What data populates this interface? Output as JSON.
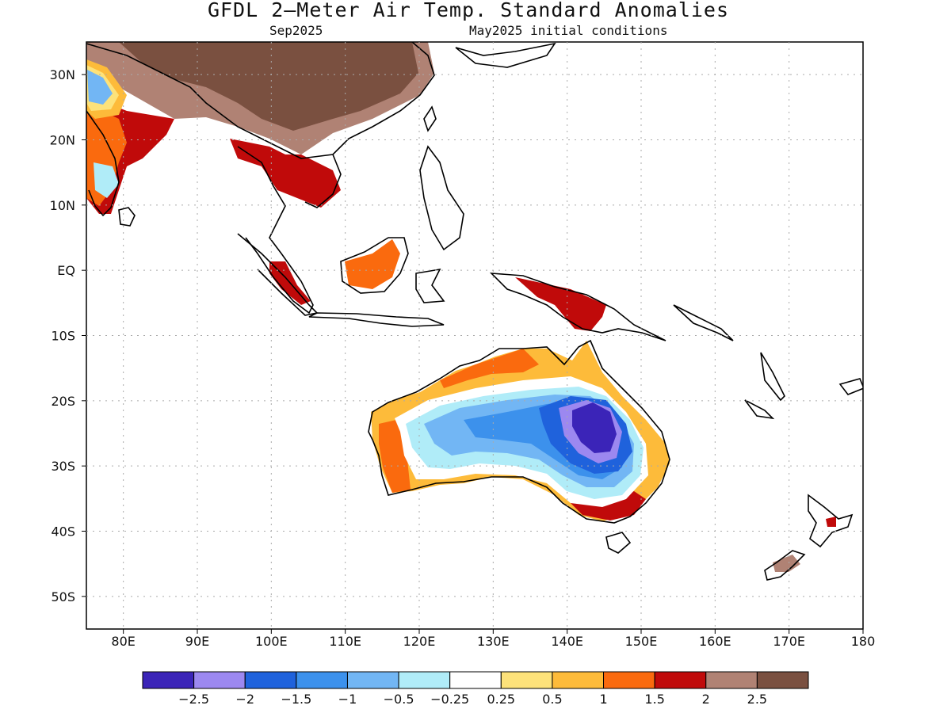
{
  "title": "GFDL 2–Meter Air Temp. Standard Anomalies",
  "subtitle_left": "Sep2025",
  "subtitle_right": "May2025 initial conditions",
  "map": {
    "lon_range": [
      75,
      180
    ],
    "lat_range": [
      -55,
      35
    ],
    "x_ticks": [
      {
        "lon": 80,
        "label": "80E"
      },
      {
        "lon": 90,
        "label": "90E"
      },
      {
        "lon": 100,
        "label": "100E"
      },
      {
        "lon": 110,
        "label": "110E"
      },
      {
        "lon": 120,
        "label": "120E"
      },
      {
        "lon": 130,
        "label": "130E"
      },
      {
        "lon": 140,
        "label": "140E"
      },
      {
        "lon": 150,
        "label": "150E"
      },
      {
        "lon": 160,
        "label": "160E"
      },
      {
        "lon": 170,
        "label": "170E"
      },
      {
        "lon": 180,
        "label": "180"
      }
    ],
    "y_ticks": [
      {
        "lat": 30,
        "label": "30N"
      },
      {
        "lat": 20,
        "label": "20N"
      },
      {
        "lat": 10,
        "label": "10N"
      },
      {
        "lat": 0,
        "label": "EQ"
      },
      {
        "lat": -10,
        "label": "10S"
      },
      {
        "lat": -20,
        "label": "20S"
      },
      {
        "lat": -30,
        "label": "30S"
      },
      {
        "lat": -40,
        "label": "40S"
      },
      {
        "lat": -50,
        "label": "50S"
      }
    ],
    "grid": true
  },
  "colorbar": {
    "colors": [
      "#3b24b8",
      "#9c88f0",
      "#1f62dc",
      "#3c91ec",
      "#72b6f4",
      "#b0ecf8",
      "#ffffff",
      "#fde27a",
      "#fdbb3a",
      "#fa6a0e",
      "#c00a0a",
      "#b08274",
      "#7a5040"
    ],
    "labels": [
      "−2.5",
      "−2",
      "−1.5",
      "−1",
      "−0.5",
      "−0.25",
      "0.25",
      "0.5",
      "1",
      "1.5",
      "2",
      "2.5"
    ]
  },
  "anomaly_regions": [
    {
      "name": "China / Tibet",
      "level": 12
    },
    {
      "name": "Southern China",
      "level": 11
    },
    {
      "name": "Indochina",
      "level": 10
    },
    {
      "name": "Western India",
      "level": 9
    },
    {
      "name": "Borneo",
      "level": 9
    },
    {
      "name": "New Guinea",
      "level": 10
    },
    {
      "name": "Northern Australia coast",
      "level": 9
    },
    {
      "name": "Southwest Australia",
      "level": 9
    },
    {
      "name": "Southeast Australia coast",
      "level": 9
    },
    {
      "name": "Interior Australia",
      "level": 4
    },
    {
      "name": "Queensland interior",
      "level": 2
    },
    {
      "name": "Queensland core",
      "level": 0
    },
    {
      "name": "New Zealand",
      "level": 11
    }
  ]
}
